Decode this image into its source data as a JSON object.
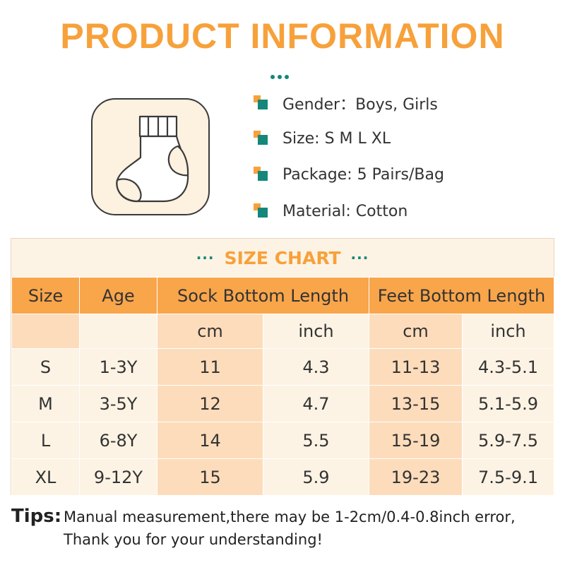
{
  "header": {
    "title": "PRODUCT INFORMATION"
  },
  "product_icon": {
    "icon": "sock-icon"
  },
  "info": {
    "items": [
      {
        "label": "Gender：Boys, Girls"
      },
      {
        "label": "Size:  S M L XL"
      },
      {
        "label": "Package:  5 Pairs/Bag"
      },
      {
        "label": "Material:   Cotton"
      }
    ]
  },
  "size_chart": {
    "dots_left": "···",
    "title": "SIZE CHART",
    "dots_right": "···",
    "headers": {
      "size": "Size",
      "age": "Age",
      "sock": "Sock Bottom Length",
      "feet": "Feet Bottom Length"
    },
    "units": {
      "sock_cm": "cm",
      "sock_inch": "inch",
      "feet_cm": "cm",
      "feet_inch": "inch"
    },
    "rows": [
      {
        "size": "S",
        "age": "1-3Y",
        "sock_cm": "11",
        "sock_inch": "4.3",
        "feet_cm": "11-13",
        "feet_inch": "4.3-5.1"
      },
      {
        "size": "M",
        "age": "3-5Y",
        "sock_cm": "12",
        "sock_inch": "4.7",
        "feet_cm": "13-15",
        "feet_inch": "5.1-5.9"
      },
      {
        "size": "L",
        "age": "6-8Y",
        "sock_cm": "14",
        "sock_inch": "5.5",
        "feet_cm": "15-19",
        "feet_inch": "5.9-7.5"
      },
      {
        "size": "XL",
        "age": "9-12Y",
        "sock_cm": "15",
        "sock_inch": "5.9",
        "feet_cm": "19-23",
        "feet_inch": "7.5-9.1"
      }
    ]
  },
  "tips": {
    "label": "Tips:",
    "line1": "Manual measurement,there may be 1-2cm/0.4-0.8inch error,",
    "line2": "Thank you for your understanding!"
  },
  "colors": {
    "accent": "#f7a13b",
    "teal": "#14877a",
    "header_bg": "#f9a54a",
    "light_bg": "#fdf3e4",
    "dark_bg": "#fddcbb"
  }
}
